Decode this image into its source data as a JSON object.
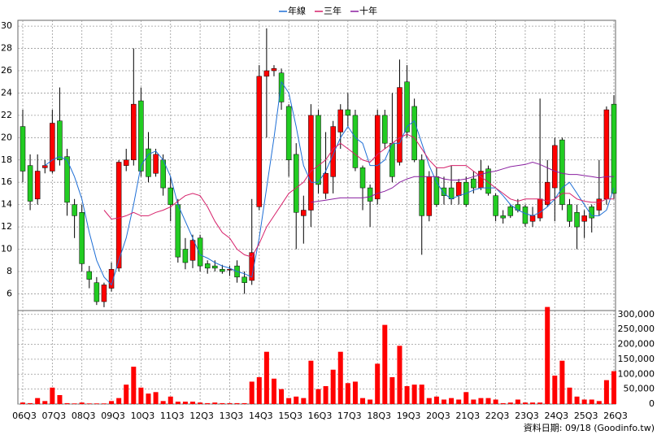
{
  "chart_data": {
    "type": "candlestick",
    "legend": [
      {
        "name": "年線",
        "color": "#1f6fd6"
      },
      {
        "name": "三年",
        "color": "#d6206a"
      },
      {
        "name": "十年",
        "color": "#8a1fa0"
      }
    ],
    "categories": [
      "06Q3",
      null,
      null,
      null,
      "07Q3",
      null,
      null,
      null,
      "08Q3",
      null,
      null,
      null,
      "09Q3",
      null,
      null,
      null,
      "10Q3",
      null,
      null,
      null,
      "11Q3",
      null,
      null,
      null,
      "12Q3",
      null,
      null,
      null,
      "13Q3",
      null,
      null,
      null,
      "14Q3",
      null,
      null,
      null,
      "15Q3",
      null,
      null,
      null,
      "16Q3",
      null,
      null,
      null,
      "17Q3",
      null,
      null,
      null,
      "18Q3",
      null,
      null,
      null,
      "19Q3",
      null,
      null,
      null,
      "20Q3",
      null,
      null,
      null,
      "21Q3",
      null,
      null,
      null,
      "22Q3",
      null,
      null,
      null,
      "23Q3",
      null,
      null,
      null,
      "24Q3",
      null,
      null,
      null,
      "25Q3",
      null,
      null,
      null,
      "26Q3"
    ],
    "open": [
      21,
      17.5,
      14.5,
      17.3,
      17,
      21.5,
      18.3,
      14,
      13.3,
      8,
      7,
      5.3,
      6.5,
      8.3,
      17.5,
      18,
      23.3,
      19,
      16.8,
      18,
      15.5,
      14,
      10,
      9,
      11,
      8.7,
      8.5,
      8.2,
      8.2,
      8.5,
      7.5,
      7.2,
      13.8,
      25.5,
      26,
      25.8,
      22.8,
      18.5,
      13,
      13.5,
      22,
      15,
      16.5,
      20.5,
      22.5,
      22,
      17.3,
      15.5,
      14.5,
      22,
      19.5,
      17.8,
      25,
      22.8,
      18,
      13,
      16.5,
      15.5,
      15.5,
      14.8,
      16,
      16.3,
      15.5,
      17.2,
      14.8,
      13,
      13.8,
      14,
      13.8,
      12.5,
      12.8,
      14,
      15.5,
      19.8,
      14,
      13.3,
      12.5,
      13.8,
      13.5,
      14.5,
      23
    ],
    "high": [
      22.5,
      18.5,
      18.5,
      18,
      22.5,
      24.5,
      19,
      14.5,
      14,
      8.5,
      7.5,
      7,
      8.8,
      18,
      19,
      28,
      24.5,
      20.5,
      19,
      18.5,
      16.5,
      14.5,
      11,
      11.3,
      11.3,
      9,
      9,
      8.6,
      8.5,
      9,
      8,
      14.5,
      26.5,
      29.8,
      26.5,
      26.2,
      23,
      19.5,
      14.8,
      23,
      22.5,
      20.5,
      21.5,
      23,
      24,
      22.5,
      17.5,
      15.8,
      22.5,
      22.5,
      24,
      27,
      26.5,
      23.5,
      18.5,
      17,
      17.3,
      16.5,
      17.5,
      16.3,
      16.5,
      17,
      18,
      17.5,
      15,
      13.5,
      14,
      14.5,
      14,
      13.8,
      23.5,
      18,
      20,
      20,
      14.5,
      14,
      13.5,
      14,
      18,
      22.8,
      23.8
    ],
    "low": [
      16,
      13.5,
      14,
      16.8,
      16.8,
      17.5,
      13,
      11,
      8,
      6.5,
      5,
      4.8,
      6.2,
      8,
      17,
      17.5,
      16.5,
      16,
      16.5,
      14.8,
      12.5,
      8.8,
      8.2,
      8.3,
      8,
      7.8,
      8,
      7.8,
      7.6,
      7,
      6,
      6.8,
      13.5,
      20,
      25.5,
      22.5,
      16.5,
      10,
      10.5,
      12,
      15,
      14.5,
      15,
      19,
      21,
      17,
      13.5,
      12,
      14,
      19,
      16,
      17.5,
      20,
      17.8,
      9.5,
      12.5,
      13.8,
      14,
      14,
      14,
      13.8,
      15,
      15.3,
      14.8,
      12.5,
      12.3,
      12.8,
      13.3,
      12,
      12,
      12.5,
      13.8,
      12.5,
      13.5,
      12,
      10,
      11,
      11.5,
      13,
      14,
      14.5
    ],
    "close": [
      17,
      14.3,
      17,
      17.5,
      21.3,
      18,
      14.2,
      13,
      8.7,
      7.3,
      5.3,
      6.8,
      8.2,
      17.8,
      18,
      23,
      17,
      16.5,
      18.5,
      15.5,
      14,
      9.3,
      8.8,
      10.8,
      8.5,
      8.3,
      8.3,
      8,
      8.2,
      7.5,
      7,
      9.7,
      25.5,
      26,
      26.2,
      23.2,
      18,
      13.3,
      13.5,
      22,
      15.8,
      16.8,
      21,
      22.5,
      22,
      17.3,
      15.5,
      14.3,
      22,
      19.5,
      16.5,
      24.5,
      20.5,
      18,
      13,
      16.5,
      14,
      14.8,
      14.5,
      16,
      14,
      15.5,
      17,
      15,
      13,
      12.8,
      13,
      13.5,
      12.3,
      13,
      14.5,
      16,
      19.3,
      14,
      12.5,
      12,
      13,
      12.8,
      14.5,
      22.5,
      15
    ],
    "volume": [
      5000,
      3000,
      20000,
      10000,
      55000,
      30000,
      3000,
      2000,
      5000,
      2000,
      2000,
      2000,
      10000,
      20000,
      65000,
      125000,
      55000,
      35000,
      40000,
      10000,
      25000,
      8000,
      8000,
      8000,
      5000,
      3000,
      5000,
      3000,
      3000,
      3000,
      3000,
      75000,
      90000,
      175000,
      85000,
      50000,
      20000,
      25000,
      20000,
      145000,
      50000,
      60000,
      115000,
      175000,
      70000,
      75000,
      20000,
      15000,
      135000,
      265000,
      90000,
      195000,
      60000,
      65000,
      65000,
      20000,
      25000,
      15000,
      20000,
      15000,
      40000,
      15000,
      20000,
      20000,
      15000,
      3000,
      5000,
      15000,
      5000,
      5000,
      5000,
      325000,
      95000,
      145000,
      55000,
      25000,
      15000,
      15000,
      10000,
      80000,
      110000
    ],
    "series": [
      {
        "name": "年線",
        "color": "#1f6fd6",
        "values": [
          null,
          null,
          null,
          17.5,
          18,
          18.3,
          18,
          16.5,
          14.5,
          11.5,
          9,
          7.5,
          6.8,
          9,
          11,
          14,
          17.5,
          18.5,
          18.8,
          18,
          16.5,
          14,
          12.5,
          11,
          9.5,
          9.2,
          8.8,
          8.5,
          8.3,
          8,
          7.8,
          7.5,
          11,
          15.5,
          20,
          25,
          24,
          21,
          17.5,
          16,
          16,
          17,
          18.5,
          20,
          21,
          20,
          19.5,
          17.5,
          17.5,
          18,
          19.5,
          19.5,
          21,
          21.5,
          19.5,
          17.5,
          16,
          15,
          14.5,
          14.8,
          15,
          15.3,
          15.5,
          15.5,
          15.5,
          14.8,
          14,
          13.5,
          13.2,
          13,
          13.3,
          13.8,
          14.5,
          15.5,
          16,
          15,
          14,
          13,
          13,
          13.5,
          15.5
        ]
      },
      {
        "name": "三年",
        "color": "#d6206a",
        "values": [
          null,
          null,
          null,
          null,
          null,
          null,
          null,
          null,
          null,
          null,
          null,
          13.5,
          12.7,
          12.8,
          13,
          13.3,
          13,
          13,
          13.3,
          13.5,
          13.8,
          14.3,
          14.8,
          15,
          14.8,
          13.8,
          12.5,
          11.5,
          11,
          10,
          9.5,
          9.3,
          10.5,
          12,
          13,
          14,
          15,
          15.5,
          16,
          17,
          17.5,
          18,
          19,
          19.5,
          19,
          18.5,
          18,
          17.8,
          18.5,
          19,
          19.5,
          20,
          20.3,
          20,
          19,
          18,
          17.3,
          17.3,
          17.5,
          17.5,
          17.5,
          17,
          16.5,
          16,
          15.5,
          15,
          14.5,
          14.3,
          14.5,
          14.5,
          14.5,
          14.3,
          14.5,
          15,
          15,
          14.5,
          14.3,
          14.2,
          14.2,
          14.5,
          14.5
        ]
      },
      {
        "name": "十年",
        "color": "#8a1fa0",
        "values": [
          null,
          null,
          null,
          null,
          null,
          null,
          null,
          null,
          null,
          null,
          null,
          null,
          null,
          null,
          null,
          null,
          null,
          null,
          null,
          null,
          null,
          null,
          null,
          null,
          null,
          null,
          null,
          null,
          null,
          null,
          null,
          null,
          null,
          null,
          null,
          null,
          null,
          null,
          null,
          14.2,
          14.3,
          14.4,
          14.5,
          14.6,
          14.6,
          14.6,
          14.6,
          14.7,
          15,
          15.2,
          15.5,
          16,
          16.3,
          16.5,
          16.5,
          16.5,
          16.5,
          16.3,
          16.2,
          16.2,
          16.3,
          16.5,
          16.7,
          16.9,
          17,
          17.2,
          17.4,
          17.5,
          17.6,
          17.8,
          17.6,
          17.3,
          17,
          16.8,
          16.7,
          16.7,
          16.6,
          16.5,
          16.4,
          16.5,
          16.5
        ]
      }
    ],
    "up_color": "#ff0000",
    "down_color": "#22cc22",
    "volume_color": "#ff0000",
    "ylim": [
      4.5,
      30.3
    ],
    "yticks": [
      6,
      8,
      10,
      12,
      14,
      16,
      18,
      20,
      22,
      24,
      26,
      28,
      30
    ],
    "y2lim": [
      0,
      313000
    ],
    "y2ticks": [
      {
        "value": 0,
        "label": "0"
      },
      {
        "value": 50000,
        "label": "50,000"
      },
      {
        "value": 100000,
        "label": "100,000"
      },
      {
        "value": 150000,
        "label": "150,000"
      },
      {
        "value": 200000,
        "label": "200,000"
      },
      {
        "value": 250000,
        "label": "250,000"
      },
      {
        "value": 300000,
        "label": "300,000"
      }
    ],
    "grid": true,
    "footnote": "資料日期: 09/18 (Goodinfo.tw)"
  }
}
